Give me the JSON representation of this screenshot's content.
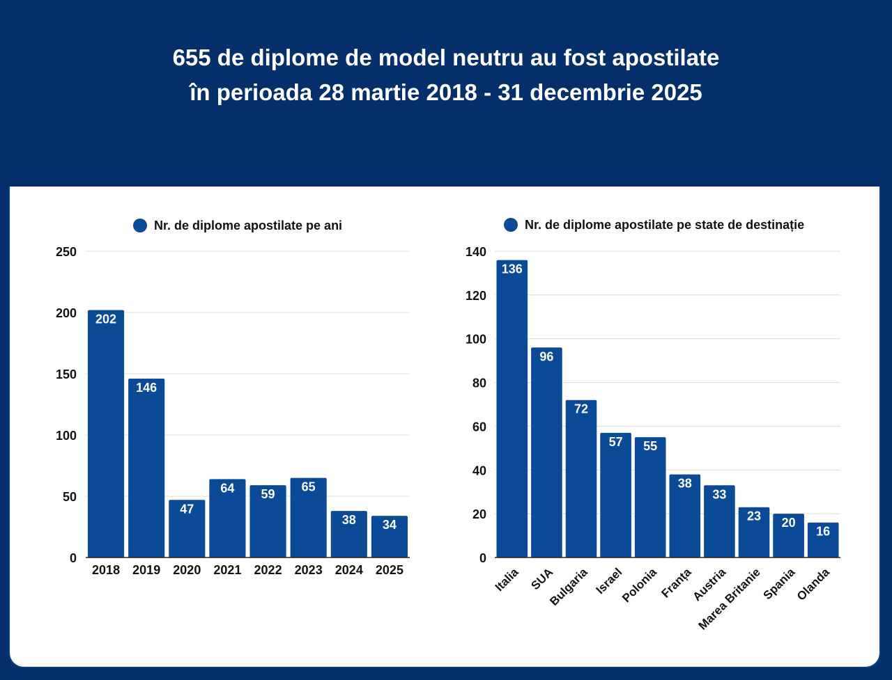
{
  "title": {
    "line1": "655 de diplome de model neutru au fost apostilate",
    "line2": "în perioada 28 martie 2018 - 31 decembrie 2025"
  },
  "colors": {
    "background": "#042f6b",
    "bar": "#0b4a96",
    "card": "#ffffff",
    "grid": "#dcdcdc"
  },
  "chart_data": [
    {
      "type": "bar",
      "legend": "Nr. de diplome apostilate pe ani",
      "legend_position": "top-center",
      "categories": [
        "2018",
        "2019",
        "2020",
        "2021",
        "2022",
        "2023",
        "2024",
        "2025"
      ],
      "values": [
        202,
        146,
        47,
        64,
        59,
        65,
        38,
        34
      ],
      "ylim": [
        0,
        250
      ],
      "yticks": [
        0,
        50,
        100,
        150,
        200,
        250
      ],
      "grid": true
    },
    {
      "type": "bar",
      "legend": "Nr. de diplome apostilate pe state de destinație",
      "legend_position": "top-center",
      "categories": [
        "Italia",
        "SUA",
        "Bulgaria",
        "Israel",
        "Polonia",
        "Franța",
        "Austria",
        "Marea Britanie",
        "Spania",
        "Olanda"
      ],
      "values": [
        136,
        96,
        72,
        57,
        55,
        38,
        33,
        23,
        20,
        16
      ],
      "ylim": [
        0,
        140
      ],
      "yticks": [
        0,
        20,
        40,
        60,
        80,
        100,
        120,
        140
      ],
      "grid": true,
      "xlabel_rotation": -45
    }
  ]
}
